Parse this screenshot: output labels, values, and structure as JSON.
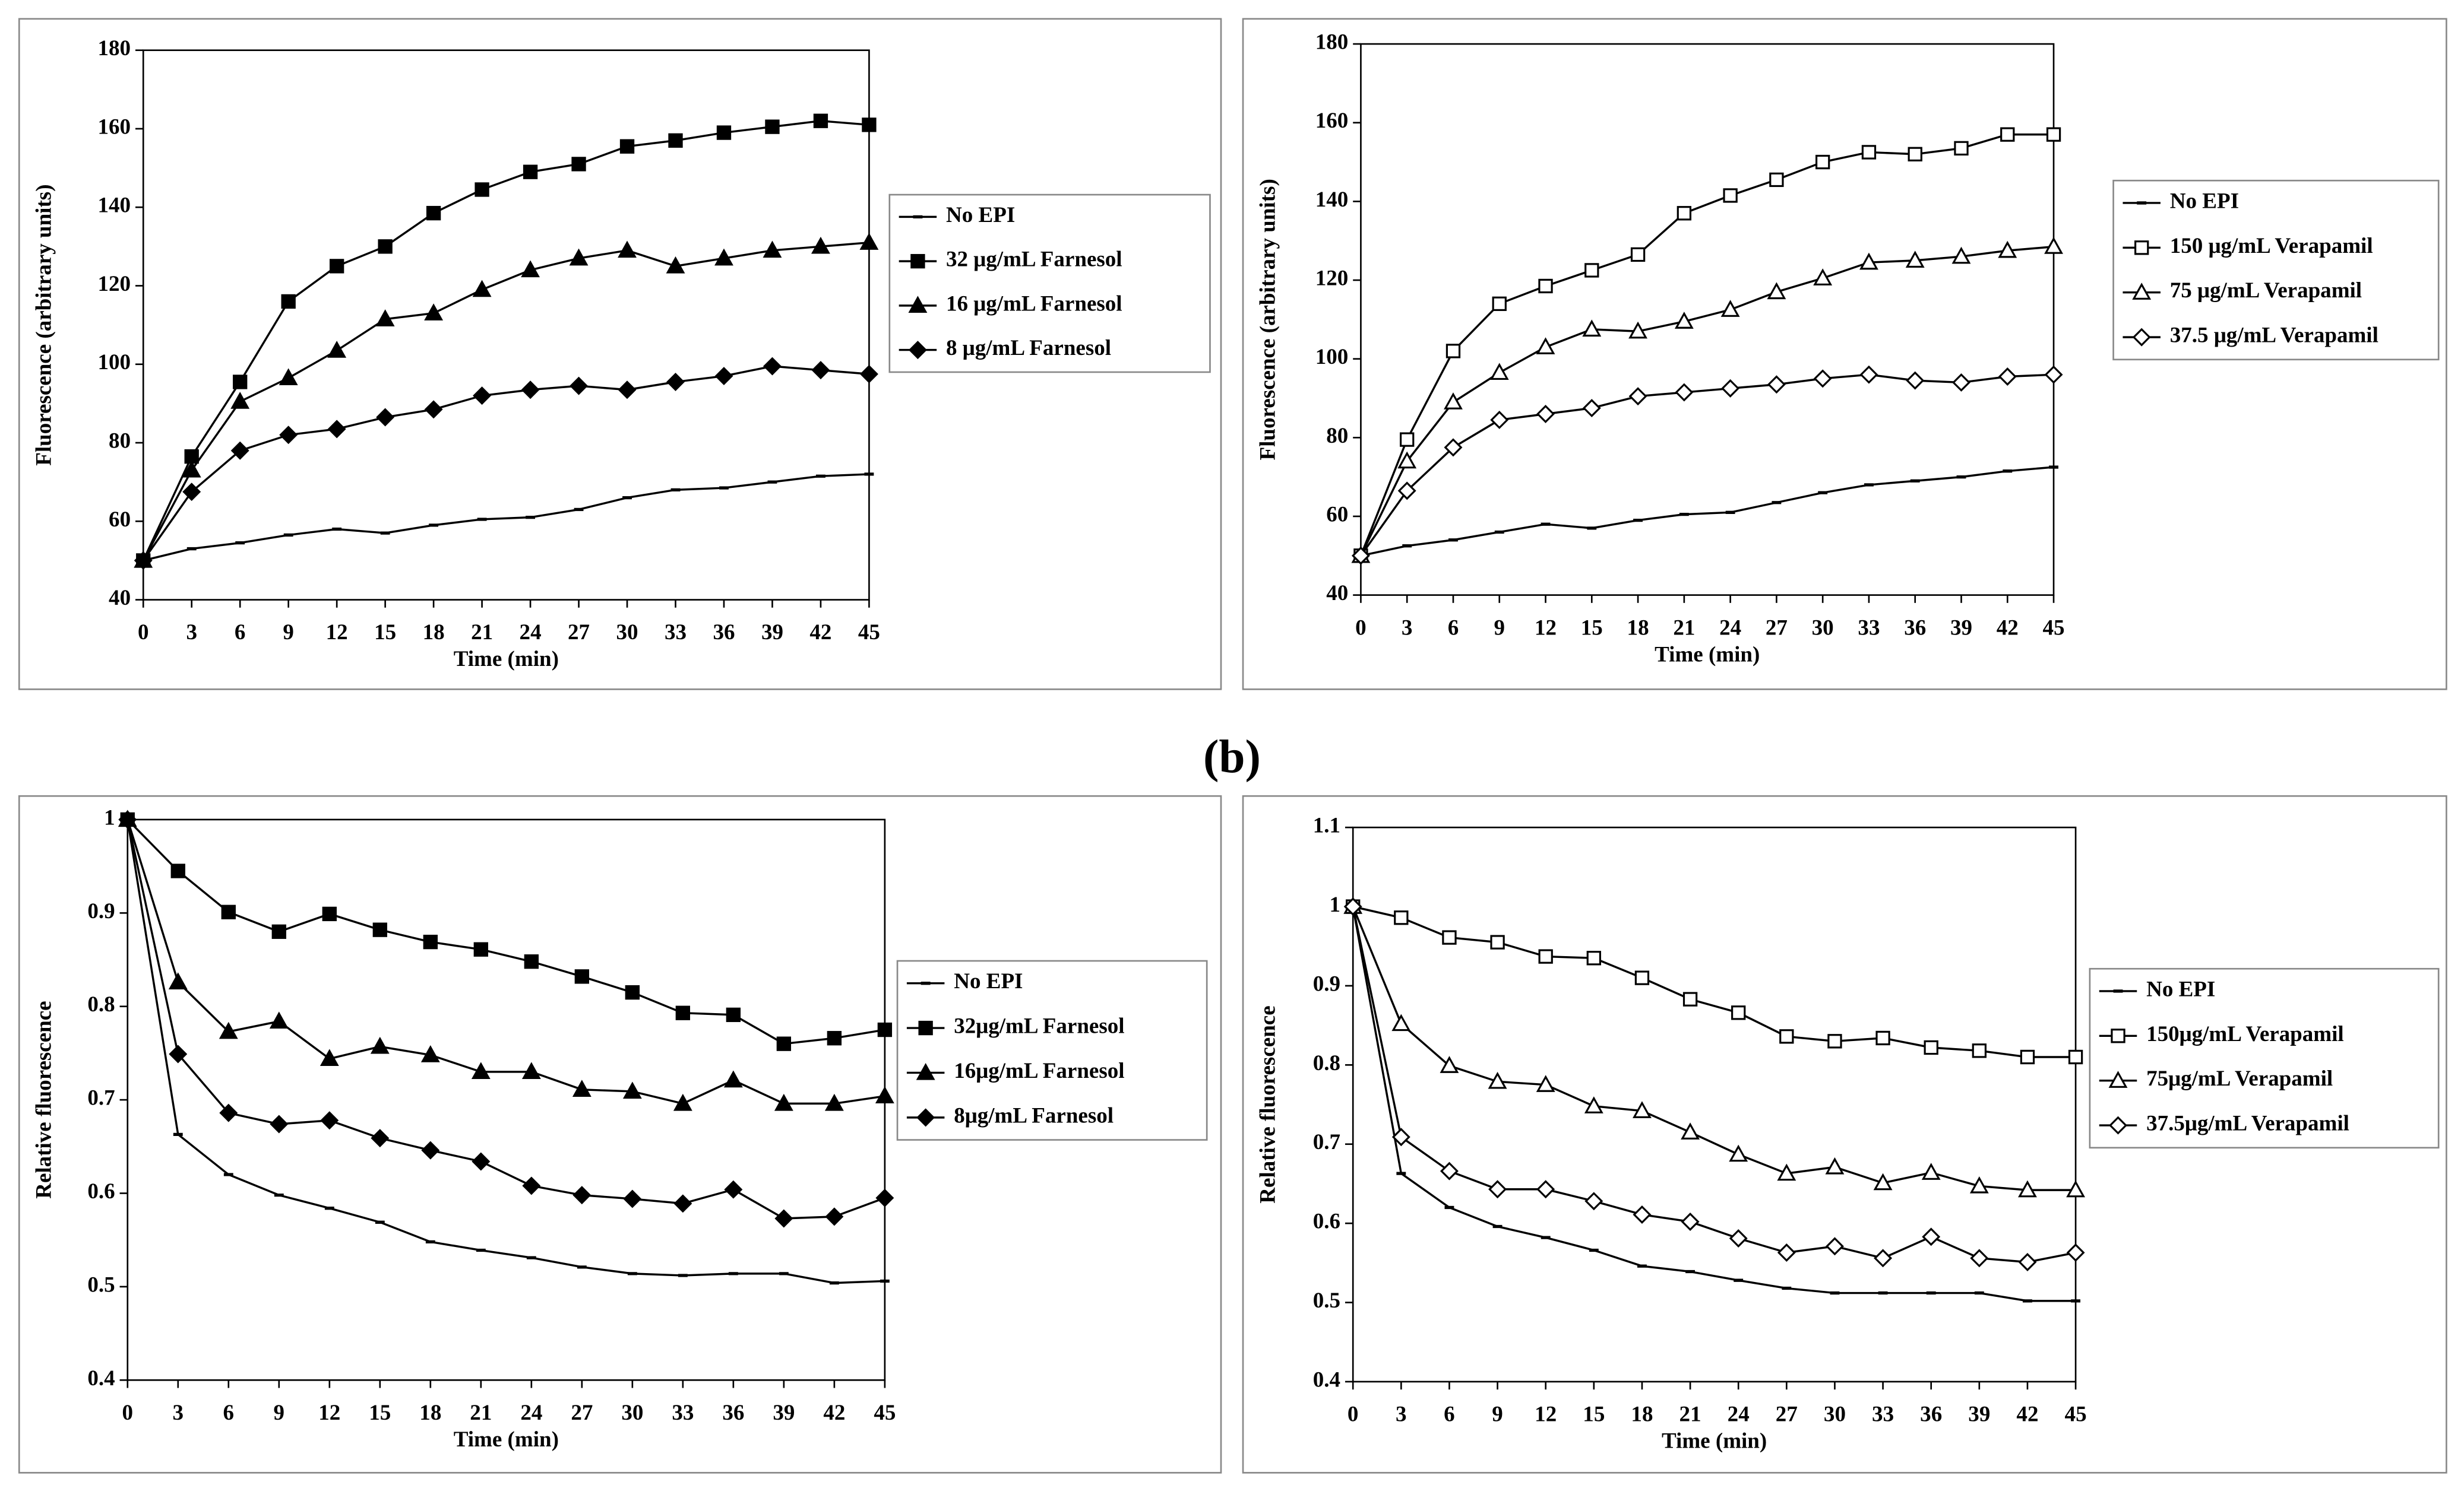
{
  "panel_label": "(b)",
  "chart_data": [
    {
      "type": "line",
      "xlabel": "Time (min)",
      "ylabel": "Fluorescence (arbitrary units)",
      "x": [
        0,
        3,
        6,
        9,
        12,
        15,
        18,
        21,
        24,
        27,
        30,
        33,
        36,
        39,
        42,
        45
      ],
      "xlim": [
        0,
        45
      ],
      "xticks": [
        0,
        3,
        6,
        9,
        12,
        15,
        18,
        21,
        24,
        27,
        30,
        33,
        36,
        39,
        42,
        45
      ],
      "ylim": [
        40,
        180
      ],
      "yticks": [
        40,
        60,
        80,
        100,
        120,
        140,
        160,
        180
      ],
      "series": [
        {
          "name": "No EPI",
          "color": "#000",
          "marker": "dash",
          "marker_fill": "#000",
          "values": [
            50,
            53,
            54.5,
            56.5,
            58,
            57,
            59,
            60.5,
            61,
            63,
            66,
            68,
            68.5,
            70,
            71.5,
            72
          ]
        },
        {
          "name": "32 μg/mL Farnesol",
          "color": "#000",
          "marker": "square",
          "marker_fill": "#000",
          "values": [
            50,
            76.5,
            95.5,
            116,
            125,
            130,
            138.5,
            144.5,
            149,
            151,
            155.5,
            157,
            159,
            160.5,
            162,
            161
          ]
        },
        {
          "name": "16 μg/mL Farnesol",
          "color": "#000",
          "marker": "triangle",
          "marker_fill": "#000",
          "values": [
            50,
            73,
            90.5,
            96.5,
            103.5,
            111.5,
            113,
            119,
            124,
            127,
            129,
            125,
            127,
            129,
            130,
            131
          ]
        },
        {
          "name": "8 μg/mL Farnesol",
          "color": "#000",
          "marker": "diamond",
          "marker_fill": "#000",
          "values": [
            50,
            67.5,
            78,
            82,
            83.5,
            86.5,
            88.5,
            92,
            93.5,
            94.5,
            93.5,
            95.5,
            97,
            99.5,
            98.5,
            97.5
          ]
        }
      ]
    },
    {
      "type": "line",
      "xlabel": "Time (min)",
      "ylabel": "Fluorescence (arbitrary units)",
      "x": [
        0,
        3,
        6,
        9,
        12,
        15,
        18,
        21,
        24,
        27,
        30,
        33,
        36,
        39,
        42,
        45
      ],
      "xlim": [
        0,
        45
      ],
      "xticks": [
        0,
        3,
        6,
        9,
        12,
        15,
        18,
        21,
        24,
        27,
        30,
        33,
        36,
        39,
        42,
        45
      ],
      "ylim": [
        40,
        180
      ],
      "yticks": [
        40,
        60,
        80,
        100,
        120,
        140,
        160,
        180
      ],
      "series": [
        {
          "name": "No EPI",
          "color": "#000",
          "marker": "dash",
          "marker_fill": "#000",
          "values": [
            50,
            52.5,
            54,
            56,
            58,
            57,
            59,
            60.5,
            61,
            63.5,
            66,
            68,
            69,
            70,
            71.5,
            72.5
          ]
        },
        {
          "name": "150 μg/mL Verapamil",
          "color": "#000",
          "marker": "square",
          "marker_fill": "#fff",
          "values": [
            50,
            79.5,
            102,
            114,
            118.5,
            122.5,
            126.5,
            137,
            141.5,
            145.5,
            150,
            152.5,
            152,
            153.5,
            157,
            157
          ]
        },
        {
          "name": "75 μg/mL Verapamil",
          "color": "#000",
          "marker": "triangle",
          "marker_fill": "#fff",
          "values": [
            50,
            74,
            89,
            96.5,
            103,
            107.5,
            107,
            109.5,
            112.5,
            117,
            120.5,
            124.5,
            125,
            126,
            127.5,
            128.5
          ]
        },
        {
          "name": "37.5 μg/mL Verapamil",
          "color": "#000",
          "marker": "diamond",
          "marker_fill": "#fff",
          "values": [
            50,
            66.5,
            77.5,
            84.5,
            86,
            87.5,
            90.5,
            91.5,
            92.5,
            93.5,
            95,
            96,
            94.5,
            94,
            95.5,
            96
          ]
        }
      ]
    },
    {
      "type": "line",
      "xlabel": "Time (min)",
      "ylabel": "Relative fluorescence",
      "x": [
        0,
        3,
        6,
        9,
        12,
        15,
        18,
        21,
        24,
        27,
        30,
        33,
        36,
        39,
        42,
        45
      ],
      "xlim": [
        0,
        45
      ],
      "xticks": [
        0,
        3,
        6,
        9,
        12,
        15,
        18,
        21,
        24,
        27,
        30,
        33,
        36,
        39,
        42,
        45
      ],
      "ylim": [
        0.4,
        1
      ],
      "yticks": [
        0.4,
        0.5,
        0.6,
        0.7,
        0.8,
        0.9,
        1
      ],
      "series": [
        {
          "name": "No EPI",
          "color": "#000",
          "marker": "dash",
          "marker_fill": "#000",
          "values": [
            1,
            0.663,
            0.62,
            0.598,
            0.584,
            0.569,
            0.548,
            0.539,
            0.531,
            0.521,
            0.514,
            0.512,
            0.514,
            0.514,
            0.504,
            0.506
          ]
        },
        {
          "name": "32μg/mL Farnesol",
          "color": "#000",
          "marker": "square",
          "marker_fill": "#000",
          "values": [
            1,
            0.945,
            0.901,
            0.88,
            0.899,
            0.882,
            0.869,
            0.861,
            0.848,
            0.832,
            0.815,
            0.793,
            0.791,
            0.76,
            0.766,
            0.775
          ]
        },
        {
          "name": "16μg/mL Farnesol",
          "color": "#000",
          "marker": "triangle",
          "marker_fill": "#000",
          "values": [
            1,
            0.826,
            0.773,
            0.784,
            0.744,
            0.757,
            0.748,
            0.73,
            0.73,
            0.711,
            0.709,
            0.696,
            0.721,
            0.696,
            0.696,
            0.704
          ]
        },
        {
          "name": "8μg/mL Farnesol",
          "color": "#000",
          "marker": "diamond",
          "marker_fill": "#000",
          "values": [
            1,
            0.749,
            0.686,
            0.674,
            0.678,
            0.659,
            0.646,
            0.634,
            0.608,
            0.598,
            0.594,
            0.589,
            0.604,
            0.573,
            0.575,
            0.595
          ]
        }
      ]
    },
    {
      "type": "line",
      "xlabel": "Time (min)",
      "ylabel": "Relative fluorescence",
      "x": [
        0,
        3,
        6,
        9,
        12,
        15,
        18,
        21,
        24,
        27,
        30,
        33,
        36,
        39,
        42,
        45
      ],
      "xlim": [
        0,
        45
      ],
      "xticks": [
        0,
        3,
        6,
        9,
        12,
        15,
        18,
        21,
        24,
        27,
        30,
        33,
        36,
        39,
        42,
        45
      ],
      "ylim": [
        0.4,
        1.1
      ],
      "yticks": [
        0.4,
        0.5,
        0.6,
        0.7,
        0.8,
        0.9,
        1,
        1.1
      ],
      "series": [
        {
          "name": "No EPI",
          "color": "#000",
          "marker": "dash",
          "marker_fill": "#000",
          "values": [
            1,
            0.663,
            0.62,
            0.596,
            0.582,
            0.566,
            0.546,
            0.539,
            0.528,
            0.518,
            0.512,
            0.512,
            0.512,
            0.512,
            0.502,
            0.502
          ]
        },
        {
          "name": "150μg/mL Verapamil",
          "color": "#000",
          "marker": "square",
          "marker_fill": "#fff",
          "values": [
            1,
            0.986,
            0.961,
            0.955,
            0.937,
            0.935,
            0.91,
            0.883,
            0.866,
            0.836,
            0.83,
            0.834,
            0.822,
            0.818,
            0.81,
            0.81
          ]
        },
        {
          "name": "75μg/mL Verapamil",
          "color": "#000",
          "marker": "triangle",
          "marker_fill": "#fff",
          "values": [
            1,
            0.852,
            0.799,
            0.779,
            0.775,
            0.748,
            0.742,
            0.715,
            0.687,
            0.663,
            0.671,
            0.651,
            0.664,
            0.647,
            0.642,
            0.642
          ]
        },
        {
          "name": "37.5μg/mL Verapamil",
          "color": "#000",
          "marker": "diamond",
          "marker_fill": "#fff",
          "values": [
            1,
            0.709,
            0.666,
            0.643,
            0.643,
            0.628,
            0.611,
            0.602,
            0.581,
            0.563,
            0.571,
            0.556,
            0.583,
            0.556,
            0.551,
            0.563
          ]
        }
      ]
    }
  ]
}
